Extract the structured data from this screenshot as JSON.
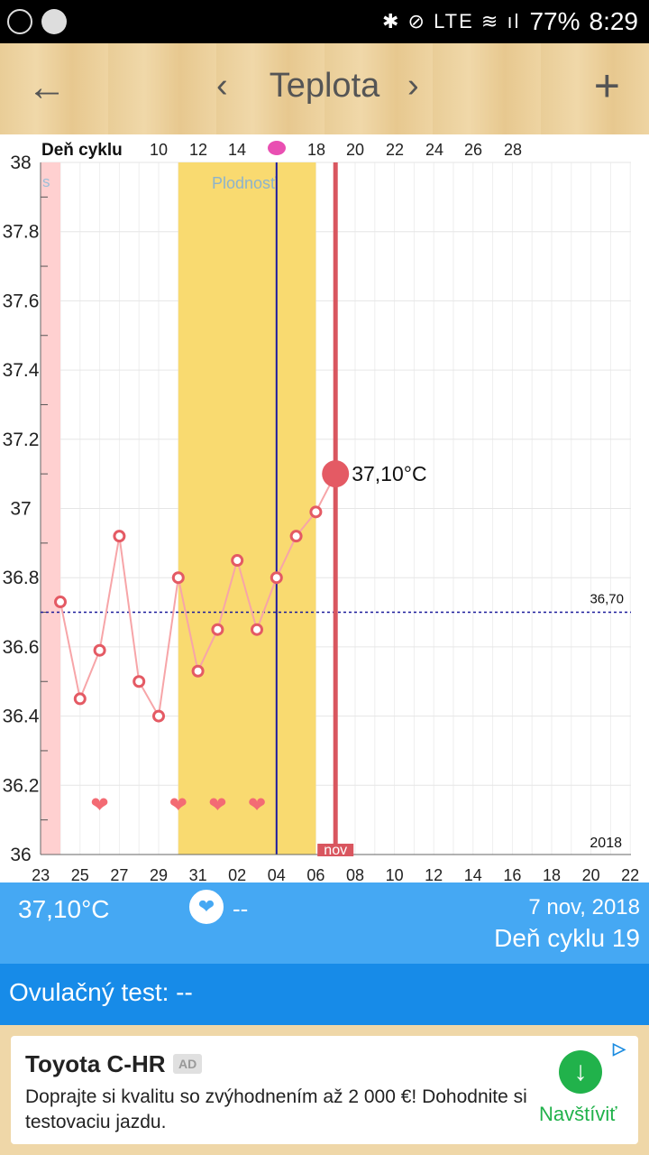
{
  "status_bar": {
    "system_icons": "✱ ⊘ LTE ≋ ıl",
    "battery": "77%",
    "time": "8:29"
  },
  "header": {
    "back_icon": "arrow-left-icon",
    "title": "Teplota",
    "prev": "‹",
    "next": "›",
    "add": "+"
  },
  "chart_data": {
    "type": "line",
    "top_axis_label": "Deň cyklu",
    "top_ticks": [
      "10",
      "12",
      "14",
      "18",
      "20",
      "22",
      "24",
      "26",
      "28"
    ],
    "x_ticks": [
      "23",
      "25",
      "27",
      "29",
      "31",
      "02",
      "04",
      "06",
      "08",
      "10",
      "12",
      "14",
      "16",
      "18",
      "20",
      "22"
    ],
    "y_ticks": [
      "36",
      "36.2",
      "36.4",
      "36.6",
      "36.8",
      "37",
      "37.2",
      "37.4",
      "37.6",
      "37.8",
      "38"
    ],
    "ylim": [
      36,
      38
    ],
    "series": [
      {
        "x": [
          "24",
          "25",
          "26",
          "27",
          "28",
          "29",
          "30",
          "31",
          "01",
          "02",
          "03",
          "04",
          "05",
          "06",
          "07"
        ],
        "values": [
          36.73,
          36.45,
          36.59,
          36.92,
          36.5,
          36.4,
          36.8,
          36.53,
          36.65,
          36.85,
          36.65,
          36.8,
          36.92,
          36.99,
          37.1
        ]
      }
    ],
    "coverline_label": "36,70",
    "coverline_value": 36.7,
    "fertile_label": "Plodnosť",
    "period_label": "s",
    "current_value_label": "37,10°C",
    "month_marker": "nov",
    "year_label": "2018",
    "intercourse_days": [
      "26",
      "30",
      "01",
      "03"
    ],
    "colors": {
      "fertile": "#f9da70",
      "period": "#ffd0d0",
      "line": "#f7a5a8",
      "point": "#e45a64",
      "cursor": "#d9565f",
      "ovulation_line": "#1a1aa0",
      "coverline": "#1a1a9a",
      "heart": "#f36b74"
    }
  },
  "info": {
    "temperature": "37,10°C",
    "heart_icon": "heart-icon",
    "sex_value": "--",
    "date": "7 nov, 2018",
    "cycle_day": "Deň cyklu 19"
  },
  "ovulation_test": {
    "label": "Ovulačný test: --"
  },
  "ad": {
    "title": "Toyota C-HR",
    "badge": "AD",
    "description": "Doprajte si kvalitu so zvýhodnením až 2 000 €! Dohodnite si testovaciu jazdu.",
    "cta_label": "Navštíviť",
    "cta_icon": "download-arrow-icon",
    "choices_icon": "ad-choices-icon"
  }
}
